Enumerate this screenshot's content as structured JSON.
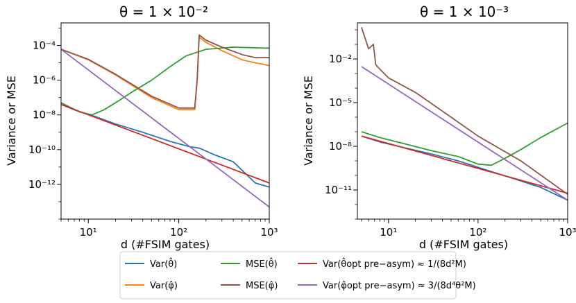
{
  "chart_data": [
    {
      "type": "line",
      "title": "θ = 1 × 10⁻²",
      "xlabel": "d (#FSIM gates)",
      "ylabel": "Variance or MSE",
      "xscale": "log",
      "yscale": "log",
      "xlim": [
        5,
        1000
      ],
      "ylim": [
        1e-14,
        0.002
      ],
      "xticks": [
        10,
        100,
        1000
      ],
      "xticklabels": [
        "10¹",
        "10²",
        "10³"
      ],
      "yticks": [
        1e-12,
        1e-10,
        1e-08,
        1e-06,
        0.0001
      ],
      "yticklabels": [
        "10⁻¹²",
        "10⁻¹⁰",
        "10⁻⁸",
        "10⁻⁶",
        "10⁻⁴"
      ],
      "series": [
        {
          "name": "Var(θ̂)",
          "color": "#1f77b4",
          "x": [
            5,
            8,
            12,
            20,
            40,
            80,
            130,
            170,
            250,
            400,
            700,
            1000
          ],
          "y": [
            4e-08,
            1.5e-08,
            8e-09,
            3e-09,
            1e-09,
            3e-10,
            1.5e-10,
            1.2e-10,
            5e-11,
            2e-11,
            1.2e-12,
            7e-13
          ]
        },
        {
          "name": "Var(φ̂)",
          "color": "#ff7f0e",
          "x": [
            5,
            10,
            20,
            50,
            100,
            150,
            160,
            168,
            200,
            300,
            500,
            700,
            1000
          ],
          "y": [
            6e-05,
            1.5e-05,
            2e-06,
            1e-07,
            2e-08,
            2e-08,
            1e-06,
            0.0003,
            0.00015,
            5e-05,
            1.5e-05,
            1e-05,
            7e-06
          ]
        },
        {
          "name": "MSE(θ̂)",
          "color": "#2ca02c",
          "x": [
            5,
            8,
            11,
            15,
            20,
            30,
            50,
            80,
            120,
            200,
            400,
            1000
          ],
          "y": [
            5e-08,
            1.5e-08,
            1e-08,
            2e-08,
            5e-08,
            2e-07,
            1e-06,
            6e-06,
            2.5e-05,
            6e-05,
            8e-05,
            7e-05
          ]
        },
        {
          "name": "MSE(φ̂)",
          "color": "#8c564b",
          "x": [
            5,
            10,
            20,
            50,
            100,
            150,
            160,
            168,
            200,
            300,
            500,
            700,
            1000
          ],
          "y": [
            6e-05,
            1.6e-05,
            2.2e-06,
            1.2e-07,
            2.5e-08,
            2.5e-08,
            1.2e-06,
            0.0004,
            0.0002,
            8e-05,
            3e-05,
            2e-05,
            2e-05
          ]
        },
        {
          "name": "Var(θ̂ opt pre-asym) ≈ 1/(8d²M)",
          "color": "#d62728",
          "x": [
            5,
            1000
          ],
          "y": [
            4e-08,
            1.2e-12
          ]
        },
        {
          "name": "Var(φ̂ opt pre-asym) ≈ 3/(8d⁴θ²M)",
          "color": "#9467bd",
          "x": [
            5,
            1000
          ],
          "y": [
            6e-05,
            5e-14
          ]
        }
      ]
    },
    {
      "type": "line",
      "title": "θ = 1 × 10⁻³",
      "xlabel": "d (#FSIM gates)",
      "ylabel": "Variance or MSE",
      "xscale": "log",
      "yscale": "log",
      "xlim": [
        4.5,
        1000
      ],
      "ylim": [
        1e-13,
        3
      ],
      "xticks": [
        10,
        100,
        1000
      ],
      "xticklabels": [
        "10¹",
        "10²",
        "10³"
      ],
      "yticks": [
        1e-11,
        1e-08,
        1e-05,
        0.01
      ],
      "yticklabels": [
        "10⁻¹¹",
        "10⁻⁸",
        "10⁻⁵",
        "10⁻²"
      ],
      "series": [
        {
          "name": "Var(θ̂)",
          "color": "#1f77b4",
          "x": [
            5,
            8,
            15,
            30,
            60,
            120,
            250,
            500,
            1000
          ],
          "y": [
            5e-08,
            2e-08,
            8e-09,
            3e-09,
            1e-09,
            2.5e-10,
            6e-11,
            1.5e-11,
            2e-12
          ]
        },
        {
          "name": "MSE(θ̂)",
          "color": "#2ca02c",
          "x": [
            5,
            8,
            15,
            30,
            60,
            100,
            140,
            200,
            300,
            500,
            1000
          ],
          "y": [
            1e-07,
            4e-08,
            1.5e-08,
            5e-09,
            2e-09,
            6e-10,
            5e-10,
            1.5e-09,
            6e-09,
            4e-08,
            4e-07
          ]
        },
        {
          "name": "MSE(φ̂)",
          "color": "#8c564b",
          "x": [
            5,
            6,
            6.8,
            7.2,
            8,
            10,
            20,
            50,
            100,
            300,
            1000
          ],
          "y": [
            1.5,
            0.05,
            0.1,
            0.004,
            0.002,
            0.0005,
            5e-05,
            1e-06,
            5e-08,
            1e-09,
            5e-12
          ]
        },
        {
          "name": "Var(θ̂ opt pre-asym) ≈ 1/(8d²M)",
          "color": "#d62728",
          "x": [
            5,
            1000
          ],
          "y": [
            5e-08,
            6e-12
          ]
        },
        {
          "name": "Var(φ̂ opt pre-asym) ≈ 3/(8d⁴θ²M)",
          "color": "#9467bd",
          "x": [
            5,
            1000
          ],
          "y": [
            0.003,
            2e-12
          ]
        }
      ]
    }
  ],
  "legend": {
    "entries": [
      {
        "label": "Var(θ̂)",
        "color": "#1f77b4"
      },
      {
        "label": "MSE(θ̂)",
        "color": "#2ca02c"
      },
      {
        "label": "Var(θ̂opt pre−asym) ≈ 1/(8d²M)",
        "color": "#d62728"
      },
      {
        "label": "Var(φ̂)",
        "color": "#ff7f0e"
      },
      {
        "label": "MSE(φ̂)",
        "color": "#8c564b"
      },
      {
        "label": "Var(φ̂opt pre−asym) ≈ 3/(8d⁴θ²M)",
        "color": "#9467bd"
      }
    ]
  },
  "colors": {
    "var_theta": "#1f77b4",
    "var_phi": "#ff7f0e",
    "mse_theta": "#2ca02c",
    "mse_phi": "#8c564b",
    "opt_theta": "#d62728",
    "opt_phi": "#9467bd"
  }
}
